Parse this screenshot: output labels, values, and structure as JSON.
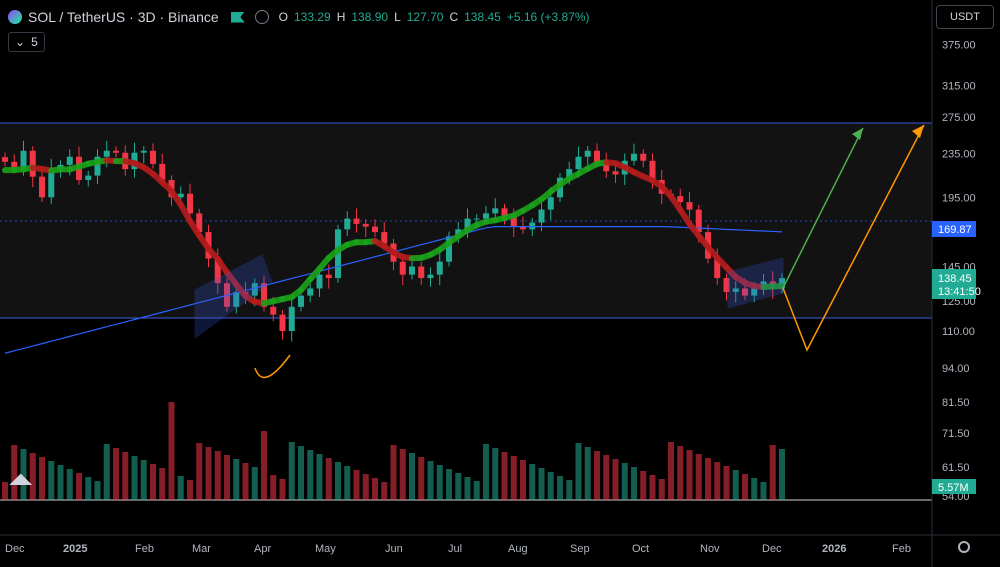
{
  "header": {
    "symbol": "SOL / TetherUS · 3D · Binance",
    "open_label": "O",
    "open_value": "133.29",
    "high_label": "H",
    "high_value": "138.90",
    "low_label": "L",
    "low_value": "127.70",
    "close_label": "C",
    "close_value": "138.45",
    "change": "+5.16 (+3.87%)"
  },
  "indicator_toggle": {
    "label": "5",
    "chevron": "chevron-down-icon"
  },
  "currency_button": "USDT",
  "colors": {
    "up": "#22ab94",
    "down": "#f23645",
    "ribbon_up": "#1aa31a",
    "ribbon_down": "#b71c1c",
    "ma": "#2962ff",
    "channel": "#3b5bdb",
    "projection_up": "#4caf50",
    "projection_alt": "#ff9800",
    "price_label": "#22ab94",
    "ma_label": "#2962ff"
  },
  "chart_data": {
    "type": "candlestick",
    "y_scale": "log",
    "y_ticks": [
      "375.00",
      "315.00",
      "275.00",
      "235.00",
      "195.00",
      "145.00",
      "125.00",
      "110.00",
      "94.00",
      "81.50",
      "71.50",
      "61.50",
      "54.00"
    ],
    "x_ticks": [
      "Dec",
      "2025",
      "Feb",
      "Mar",
      "Apr",
      "May",
      "Jun",
      "Jul",
      "Aug",
      "Sep",
      "Oct",
      "Nov",
      "Dec",
      "2026",
      "Feb"
    ],
    "price_label": {
      "value": "138.45",
      "countdown": "13:41:50"
    },
    "ma_label": "169.87",
    "volume_label": "5.57M",
    "closes": [
      227,
      222,
      238,
      213,
      195,
      220,
      224,
      232,
      210,
      214,
      232,
      238,
      236,
      220,
      236,
      238,
      225,
      210,
      195,
      198,
      182,
      168,
      150,
      135,
      122,
      130,
      128,
      135,
      122,
      118,
      110,
      122,
      128,
      132,
      140,
      138,
      170,
      178,
      174,
      172,
      168,
      160,
      148,
      140,
      145,
      138,
      140,
      148,
      165,
      170,
      178,
      178,
      182,
      186,
      180,
      172,
      170,
      175,
      185,
      195,
      212,
      220,
      232,
      238,
      226,
      218,
      215,
      228,
      235,
      228,
      210,
      198,
      196,
      191,
      185,
      168,
      150,
      138,
      130,
      132,
      128,
      133,
      136,
      132,
      138
    ]
  }
}
